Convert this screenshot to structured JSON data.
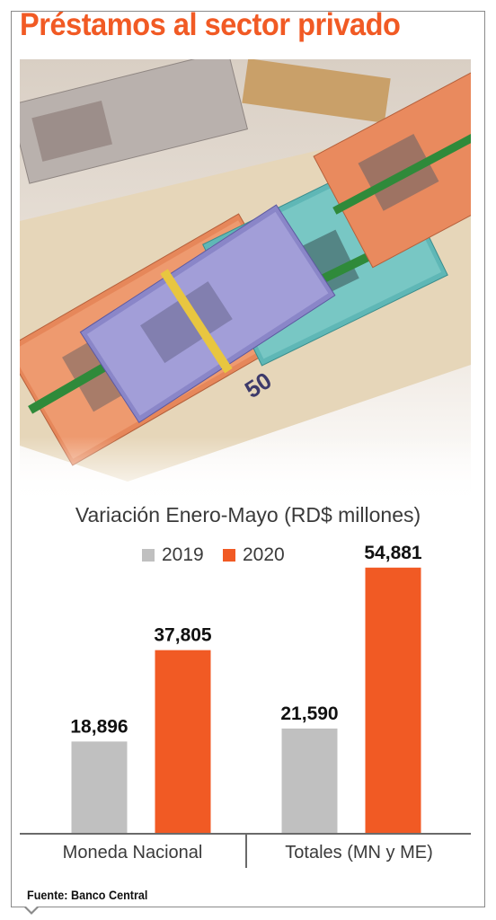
{
  "title": "Préstamos al sector privado",
  "source": "Fuente: Banco Central",
  "colors": {
    "title": "#f15a24",
    "series_2019": "#c0c0c0",
    "series_2020": "#f15a24"
  },
  "photo": {
    "subject": "bundles of Dominican peso banknotes",
    "note_label": "50"
  },
  "chart_data": {
    "type": "bar",
    "title": "Variación Enero-Mayo (RD$ millones)",
    "categories": [
      "Moneda Nacional",
      "Totales (MN y ME)"
    ],
    "series": [
      {
        "name": "2019",
        "values": [
          18896,
          21590
        ],
        "labels": [
          "18,896",
          "21,590"
        ]
      },
      {
        "name": "2020",
        "values": [
          37805,
          54881
        ],
        "labels": [
          "37,805",
          "54,881"
        ]
      }
    ],
    "ylim": [
      0,
      58000
    ],
    "grid": false,
    "legend": "top"
  }
}
